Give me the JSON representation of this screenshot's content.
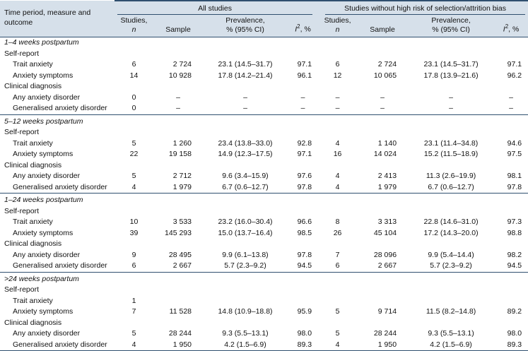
{
  "table": {
    "row_header": "Time period, measure and outcome",
    "groups": [
      {
        "label": "All studies"
      },
      {
        "label": "Studies without high risk of selection/attrition bias"
      }
    ],
    "columns": [
      {
        "line1": "Studies,",
        "line2": "n"
      },
      {
        "line1": "Sample"
      },
      {
        "line1": "Prevalence,",
        "line2": "% (95% CI)"
      },
      {
        "italic": "I",
        "sup": "2",
        "rest": ", %"
      }
    ],
    "sections": [
      {
        "title": "1–4 weeks postpartum",
        "subsections": [
          {
            "title": "Self-report",
            "rows": [
              {
                "label": "Trait anxiety",
                "cells": [
                  "6",
                  "2 724",
                  "23.1 (14.5–31.7)",
                  "97.1",
                  "6",
                  "2 724",
                  "23.1 (14.5–31.7)",
                  "97.1"
                ]
              },
              {
                "label": "Anxiety symptoms",
                "cells": [
                  "14",
                  "10 928",
                  "17.8 (14.2–21.4)",
                  "96.1",
                  "12",
                  "10 065",
                  "17.8 (13.9–21.6)",
                  "96.2"
                ]
              }
            ]
          },
          {
            "title": "Clinical diagnosis",
            "rows": [
              {
                "label": "Any anxiety disorder",
                "cells": [
                  "0",
                  "–",
                  "–",
                  "–",
                  "–",
                  "–",
                  "–",
                  "–"
                ]
              },
              {
                "label": "Generalised anxiety disorder",
                "cells": [
                  "0",
                  "–",
                  "–",
                  "–",
                  "–",
                  "–",
                  "–",
                  "–"
                ]
              }
            ]
          }
        ]
      },
      {
        "title": "5–12 weeks postpartum",
        "subsections": [
          {
            "title": "Self-report",
            "rows": [
              {
                "label": "Trait anxiety",
                "cells": [
                  "5",
                  "1 260",
                  "23.4 (13.8–33.0)",
                  "92.8",
                  "4",
                  "1 140",
                  "23.1 (11.4–34.8)",
                  "94.6"
                ]
              },
              {
                "label": "Anxiety symptoms",
                "cells": [
                  "22",
                  "19 158",
                  "14.9 (12.3–17.5)",
                  "97.1",
                  "16",
                  "14 024",
                  "15.2 (11.5–18.9)",
                  "97.5"
                ]
              }
            ]
          },
          {
            "title": "Clinical diagnosis",
            "rows": [
              {
                "label": "Any anxiety disorder",
                "cells": [
                  "5",
                  "2 712",
                  "9.6 (3.4–15.9)",
                  "97.6",
                  "4",
                  "2 413",
                  "11.3 (2.6–19.9)",
                  "98.1"
                ]
              },
              {
                "label": "Generalised anxiety disorder",
                "cells": [
                  "4",
                  "1 979",
                  "6.7 (0.6–12.7)",
                  "97.8",
                  "4",
                  "1 979",
                  "6.7 (0.6–12.7)",
                  "97.8"
                ]
              }
            ]
          }
        ]
      },
      {
        "title": "1–24 weeks postpartum",
        "subsections": [
          {
            "title": "Self-report",
            "rows": [
              {
                "label": "Trait anxiety",
                "cells": [
                  "10",
                  "3 533",
                  "23.2 (16.0–30.4)",
                  "96.6",
                  "8",
                  "3 313",
                  "22.8 (14.6–31.0)",
                  "97.3"
                ]
              },
              {
                "label": "Anxiety symptoms",
                "cells": [
                  "39",
                  "145 293",
                  "15.0 (13.7–16.4)",
                  "98.5",
                  "26",
                  "45 104",
                  "17.2 (14.3–20.0)",
                  "98.8"
                ]
              }
            ]
          },
          {
            "title": "Clinical diagnosis",
            "rows": [
              {
                "label": "Any anxiety disorder",
                "cells": [
                  "9",
                  "28 495",
                  "9.9 (6.1–13.8)",
                  "97.8",
                  "7",
                  "28 096",
                  "9.9 (5.4–14.4)",
                  "98.2"
                ]
              },
              {
                "label": "Generalised anxiety disorder",
                "cells": [
                  "6",
                  "2 667",
                  "5.7 (2.3–9.2)",
                  "94.5",
                  "6",
                  "2 667",
                  "5.7 (2.3–9.2)",
                  "94.5"
                ]
              }
            ]
          }
        ]
      },
      {
        "title": ">24 weeks postpartum",
        "subsections": [
          {
            "title": "Self-report",
            "rows": [
              {
                "label": "Trait anxiety",
                "cells": [
                  "1",
                  "",
                  "",
                  "",
                  "",
                  "",
                  "",
                  ""
                ]
              },
              {
                "label": "Anxiety symptoms",
                "cells": [
                  "7",
                  "11 528",
                  "14.8 (10.9–18.8)",
                  "95.9",
                  "5",
                  "9 714",
                  "11.5 (8.2–14.8)",
                  "89.2"
                ]
              }
            ]
          },
          {
            "title": "Clinical diagnosis",
            "rows": [
              {
                "label": "Any anxiety disorder",
                "cells": [
                  "5",
                  "28 244",
                  "9.3 (5.5–13.1)",
                  "98.0",
                  "5",
                  "28 244",
                  "9.3 (5.5–13.1)",
                  "98.0"
                ]
              },
              {
                "label": "Generalised anxiety disorder",
                "cells": [
                  "4",
                  "1 950",
                  "4.2 (1.5–6.9)",
                  "89.3",
                  "4",
                  "1 950",
                  "4.2 (1.5–6.9)",
                  "89.3"
                ]
              }
            ]
          }
        ]
      }
    ]
  }
}
